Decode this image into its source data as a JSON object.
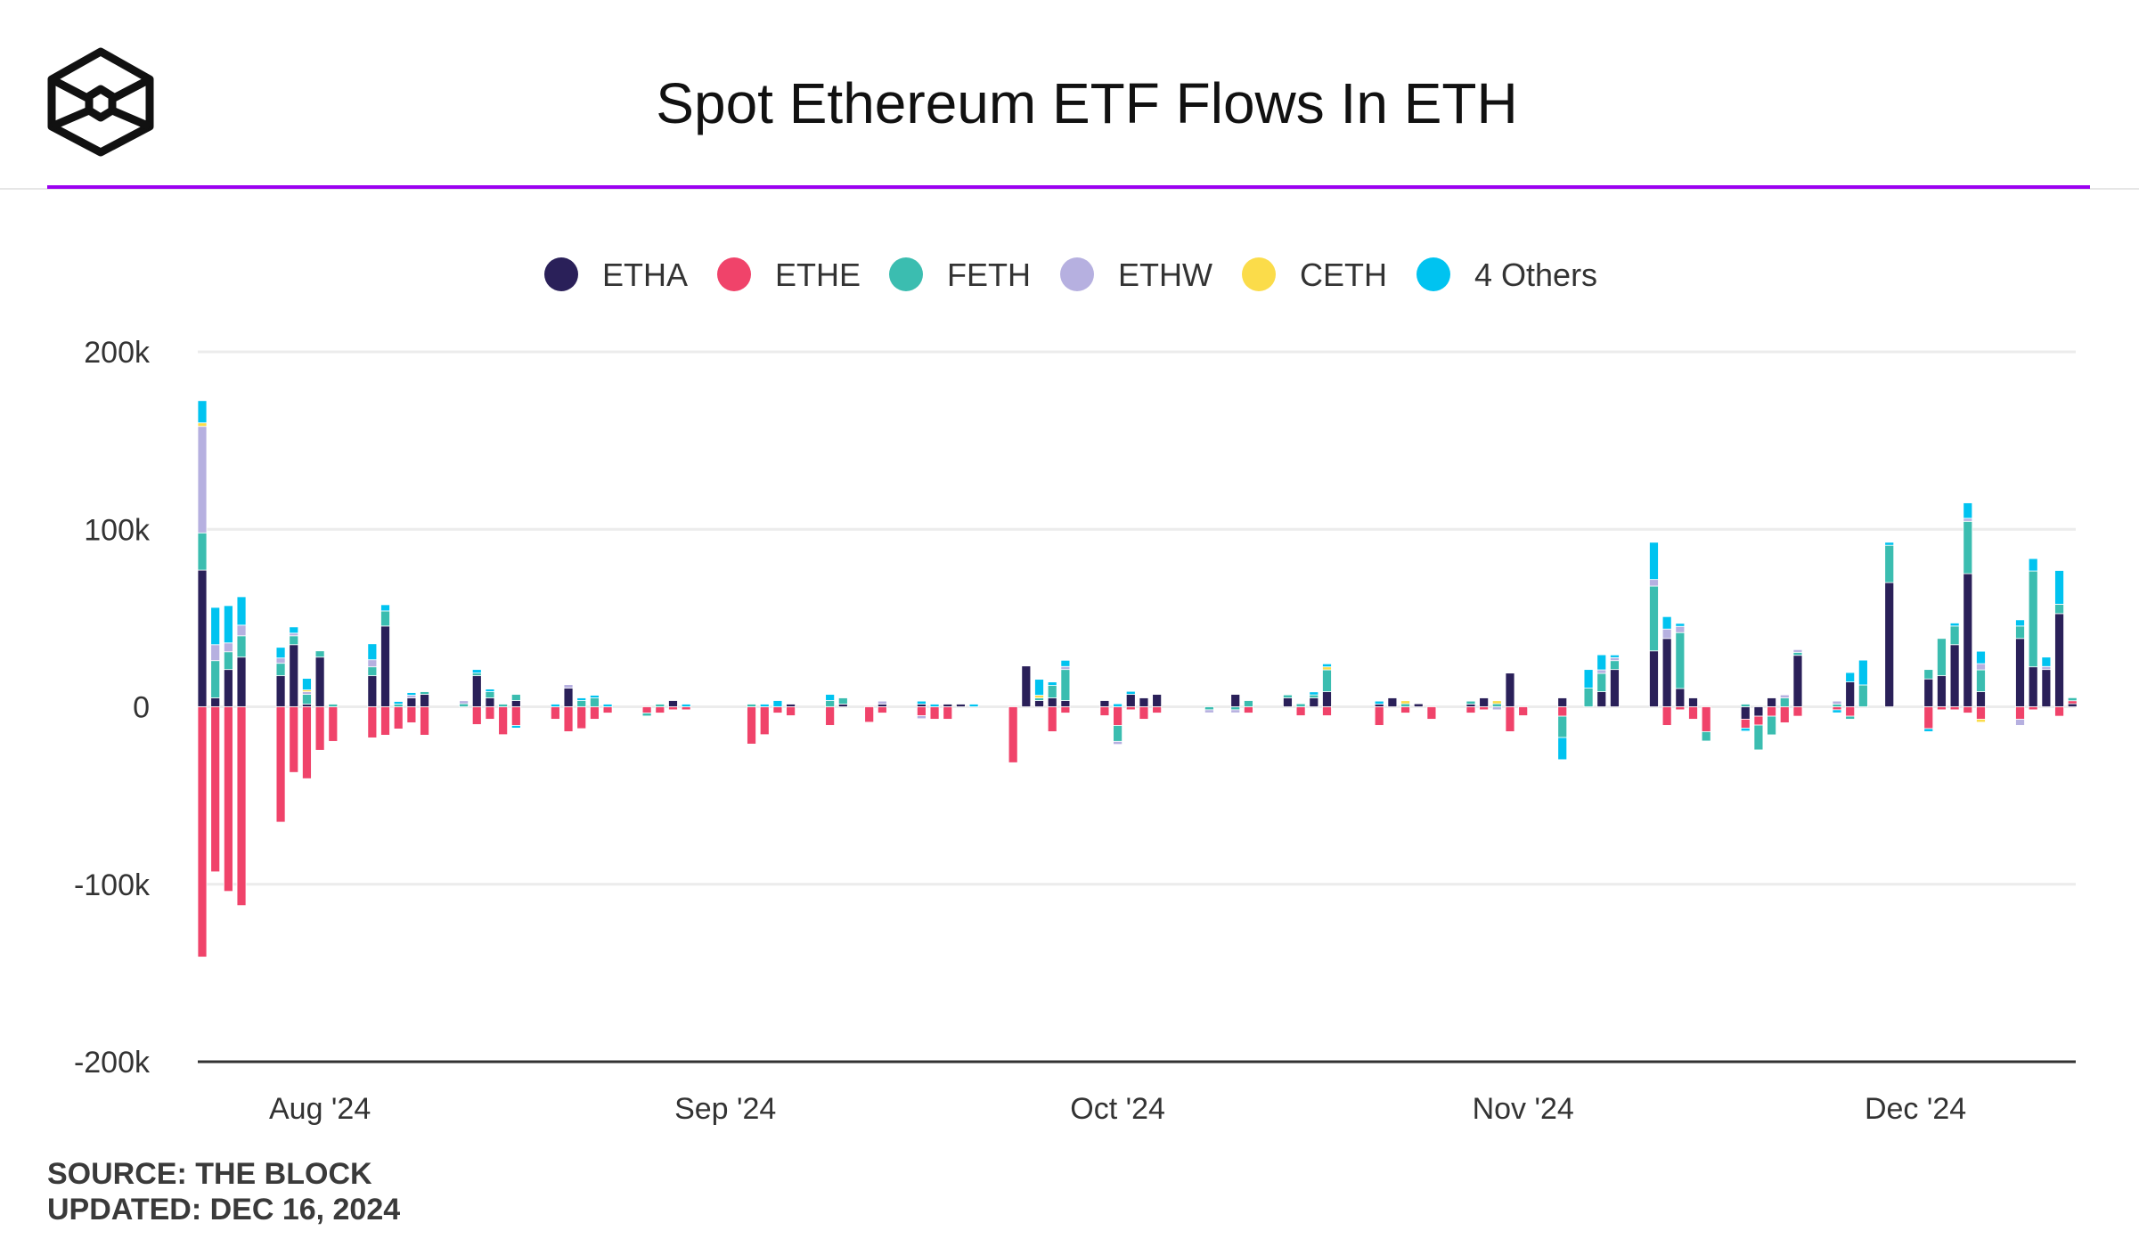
{
  "header": {
    "title": "Spot Ethereum ETF Flows In ETH",
    "accent_color": "#9b00f0"
  },
  "footer": {
    "source": "SOURCE: THE BLOCK",
    "updated": "UPDATED: DEC 16, 2024"
  },
  "chart_data": {
    "type": "bar",
    "stacked": true,
    "title": "Spot Ethereum ETF Flows In ETH",
    "xlabel": "",
    "ylabel": "",
    "ylim": [
      -200000,
      200000
    ],
    "grid": true,
    "legend_position": "top",
    "y_ticks": [
      {
        "value": 200000,
        "label": "200k"
      },
      {
        "value": 100000,
        "label": "100k"
      },
      {
        "value": 0,
        "label": "0"
      },
      {
        "value": -100000,
        "label": "-100k"
      },
      {
        "value": -200000,
        "label": "-200k"
      }
    ],
    "x_ticks": [
      {
        "date": "2024-08-01",
        "label": "Aug '24"
      },
      {
        "date": "2024-09-01",
        "label": "Sep '24"
      },
      {
        "date": "2024-10-01",
        "label": "Oct '24"
      },
      {
        "date": "2024-11-01",
        "label": "Nov '24"
      },
      {
        "date": "2024-12-01",
        "label": "Dec '24"
      }
    ],
    "x_start": "2024-07-23",
    "x_end": "2024-12-16",
    "dates": [
      "2024-07-23",
      "2024-07-24",
      "2024-07-25",
      "2024-07-26",
      "2024-07-29",
      "2024-07-30",
      "2024-07-31",
      "2024-08-01",
      "2024-08-02",
      "2024-08-05",
      "2024-08-06",
      "2024-08-07",
      "2024-08-08",
      "2024-08-09",
      "2024-08-12",
      "2024-08-13",
      "2024-08-14",
      "2024-08-15",
      "2024-08-16",
      "2024-08-19",
      "2024-08-20",
      "2024-08-21",
      "2024-08-22",
      "2024-08-23",
      "2024-08-26",
      "2024-08-27",
      "2024-08-28",
      "2024-08-29",
      "2024-09-03",
      "2024-09-04",
      "2024-09-05",
      "2024-09-06",
      "2024-09-09",
      "2024-09-10",
      "2024-09-12",
      "2024-09-13",
      "2024-09-16",
      "2024-09-17",
      "2024-09-18",
      "2024-09-19",
      "2024-09-20",
      "2024-09-23",
      "2024-09-24",
      "2024-09-25",
      "2024-09-26",
      "2024-09-27",
      "2024-09-30",
      "2024-10-01",
      "2024-10-02",
      "2024-10-03",
      "2024-10-04",
      "2024-10-08",
      "2024-10-10",
      "2024-10-11",
      "2024-10-14",
      "2024-10-15",
      "2024-10-16",
      "2024-10-17",
      "2024-10-21",
      "2024-10-22",
      "2024-10-23",
      "2024-10-24",
      "2024-10-25",
      "2024-10-28",
      "2024-10-29",
      "2024-10-30",
      "2024-10-31",
      "2024-11-01",
      "2024-11-04",
      "2024-11-06",
      "2024-11-07",
      "2024-11-08",
      "2024-11-11",
      "2024-11-12",
      "2024-11-13",
      "2024-11-14",
      "2024-11-15",
      "2024-11-18",
      "2024-11-19",
      "2024-11-20",
      "2024-11-21",
      "2024-11-22",
      "2024-11-25",
      "2024-11-26",
      "2024-11-27",
      "2024-11-29",
      "2024-12-02",
      "2024-12-03",
      "2024-12-04",
      "2024-12-05",
      "2024-12-06",
      "2024-12-09",
      "2024-12-10",
      "2024-12-11",
      "2024-12-12",
      "2024-12-13"
    ],
    "series": [
      {
        "name": "ETHA",
        "color": "#2a2059",
        "values": [
          77000,
          5000,
          21000,
          28000,
          17500,
          35000,
          1500,
          28000,
          0,
          17500,
          45500,
          0,
          5000,
          7000,
          0,
          17500,
          5000,
          0,
          3500,
          0,
          10500,
          0,
          0,
          0,
          0,
          0,
          3500,
          0,
          0,
          0,
          0,
          1500,
          0,
          1500,
          0,
          1500,
          1500,
          0,
          1500,
          1500,
          0,
          0,
          23000,
          3500,
          5000,
          3500,
          3500,
          0,
          7000,
          5000,
          7000,
          0,
          7000,
          0,
          5000,
          0,
          5000,
          8500,
          1500,
          5000,
          0,
          1700,
          0,
          1500,
          5000,
          0,
          19000,
          0,
          5000,
          0,
          8500,
          21000,
          31500,
          38500,
          10300,
          5000,
          0,
          -7000,
          -5300,
          5000,
          0,
          29000,
          0,
          14000,
          0,
          70000,
          15700,
          17500,
          35000,
          75000,
          8500,
          38500,
          22500,
          21000,
          52500,
          1700
        ]
      },
      {
        "name": "ETHE",
        "color": "#f0436a",
        "values": [
          -141000,
          -93000,
          -104000,
          -112000,
          -65000,
          -37000,
          -40500,
          -24500,
          -19500,
          -17500,
          -16000,
          -12500,
          -9000,
          -16000,
          0,
          -10000,
          -7000,
          -15700,
          -10500,
          -7000,
          -14000,
          -12300,
          -7000,
          -3500,
          -3500,
          -3500,
          -1700,
          -1700,
          -21000,
          -15700,
          -3500,
          -5000,
          -10500,
          0,
          -8700,
          -3500,
          -5000,
          -7000,
          -7000,
          0,
          0,
          -31500,
          0,
          0,
          -14000,
          -3500,
          -5000,
          -10500,
          -1700,
          -7000,
          -3500,
          0,
          0,
          -3500,
          0,
          -5000,
          0,
          -5000,
          -10500,
          0,
          -3500,
          0,
          -7000,
          -3500,
          -1700,
          0,
          -14000,
          -5000,
          -5300,
          0,
          0,
          0,
          0,
          -10500,
          -1700,
          -7000,
          -14000,
          -5000,
          -5000,
          -5300,
          -9000,
          -5300,
          -1700,
          -5300,
          0,
          0,
          -12300,
          -1700,
          -1700,
          -3500,
          -7000,
          -7000,
          -1700,
          0,
          -5300,
          1700
        ]
      },
      {
        "name": "FETH",
        "color": "#3bbdb0",
        "values": [
          21000,
          21000,
          10000,
          12000,
          7000,
          5000,
          5500,
          3500,
          1500,
          5000,
          8500,
          1500,
          0,
          1500,
          1700,
          1500,
          3500,
          1500,
          3500,
          0,
          0,
          3500,
          5000,
          0,
          -1700,
          1500,
          0,
          0,
          1500,
          0,
          0,
          0,
          3500,
          3500,
          0,
          0,
          0,
          0,
          0,
          0,
          0,
          0,
          0,
          1500,
          7000,
          17500,
          0,
          -9000,
          0,
          0,
          0,
          -1700,
          -1700,
          3500,
          1700,
          1700,
          1700,
          12300,
          0,
          0,
          1700,
          0,
          0,
          1700,
          0,
          1700,
          0,
          0,
          -12000,
          10500,
          10300,
          5000,
          36500,
          0,
          31500,
          0,
          -5300,
          1500,
          -14000,
          -10500,
          5000,
          1700,
          1500,
          -1700,
          12300,
          21000,
          5300,
          21000,
          10500,
          29500,
          12300,
          7000,
          54000,
          0,
          5300,
          1700
        ]
      },
      {
        "name": "ETHW",
        "color": "#b6b0e0",
        "values": [
          60000,
          9000,
          5000,
          6000,
          3000,
          1500,
          1500,
          0,
          0,
          4000,
          0,
          0,
          1500,
          0,
          1700,
          0,
          0,
          0,
          0,
          0,
          2000,
          0,
          0,
          0,
          0,
          0,
          0,
          0,
          0,
          0,
          0,
          0,
          0,
          0,
          0,
          1700,
          -1700,
          0,
          0,
          0,
          0,
          0,
          0,
          0,
          0,
          1700,
          0,
          -1700,
          0,
          0,
          0,
          -1700,
          -1700,
          0,
          0,
          0,
          0,
          0,
          0,
          0,
          0,
          0,
          0,
          0,
          0,
          -1700,
          0,
          0,
          0,
          0,
          2000,
          1700,
          3700,
          5300,
          3500,
          0,
          0,
          0,
          0,
          0,
          1700,
          1500,
          1700,
          0,
          0,
          0,
          0,
          0,
          0,
          1700,
          3500,
          -3500,
          0,
          1700,
          0,
          0
        ]
      },
      {
        "name": "CETH",
        "color": "#fbdc4a",
        "values": [
          2000,
          0,
          0,
          0,
          0,
          0,
          1000,
          0,
          0,
          0,
          0,
          0,
          0,
          0,
          0,
          0,
          0,
          0,
          0,
          0,
          0,
          0,
          0,
          0,
          0,
          0,
          0,
          0,
          0,
          0,
          0,
          0,
          0,
          0,
          0,
          0,
          0,
          0,
          0,
          0,
          0,
          0,
          0,
          1500,
          0,
          0,
          0,
          0,
          0,
          0,
          0,
          0,
          0,
          0,
          0,
          0,
          0,
          1700,
          0,
          0,
          1700,
          0,
          0,
          0,
          0,
          1700,
          0,
          0,
          0,
          0,
          0,
          0,
          0,
          0,
          0,
          0,
          0,
          0,
          0,
          0,
          0,
          0,
          0,
          0,
          0,
          0,
          0,
          0,
          0,
          0,
          -1700,
          0,
          0,
          0,
          0,
          0
        ]
      },
      {
        "name": "4 Others",
        "color": "#00c3f0",
        "values": [
          12500,
          21000,
          21000,
          16000,
          6000,
          3500,
          6500,
          0,
          0,
          9000,
          3500,
          1500,
          1500,
          0,
          0,
          2000,
          1500,
          0,
          -1500,
          1500,
          0,
          1500,
          1500,
          1500,
          0,
          0,
          0,
          1500,
          0,
          1500,
          3500,
          0,
          3500,
          0,
          0,
          0,
          1700,
          1500,
          0,
          0,
          1500,
          0,
          0,
          9000,
          2000,
          3500,
          0,
          1700,
          1700,
          0,
          0,
          0,
          0,
          0,
          0,
          0,
          1700,
          1700,
          1700,
          0,
          0,
          0,
          0,
          0,
          0,
          0,
          0,
          0,
          -12500,
          10500,
          8500,
          1500,
          21000,
          7000,
          1700,
          0,
          0,
          -1700,
          0,
          0,
          0,
          0,
          -1700,
          5300,
          14000,
          1700,
          -1700,
          0,
          1700,
          8700,
          7000,
          3500,
          7000,
          5300,
          19000,
          0
        ]
      }
    ]
  }
}
